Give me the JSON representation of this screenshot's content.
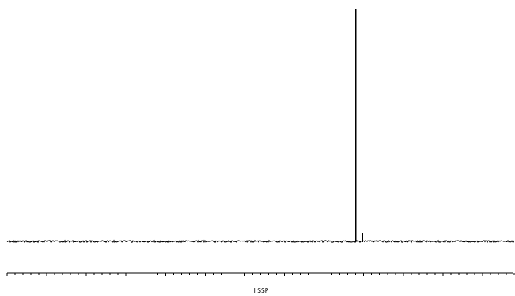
{
  "chart_data": {
    "type": "line",
    "title": "",
    "axis_caption": "I   SSP",
    "xlabel": "I   SSP",
    "ylabel": "",
    "grid": false,
    "legend": "none",
    "x_ticks": {
      "count": 64,
      "major_every": 5,
      "labels_shown": false
    },
    "baseline_level": 0.0,
    "noise_amplitude": 0.004,
    "series": [
      {
        "peaks": [
          {
            "position_fraction": 0.6875,
            "height_fraction": 1.0
          },
          {
            "position_fraction": 0.7012,
            "height_fraction": 0.034
          }
        ]
      }
    ],
    "colors": {
      "trace": "#000000",
      "axis": "#000000",
      "background": "#ffffff"
    }
  }
}
